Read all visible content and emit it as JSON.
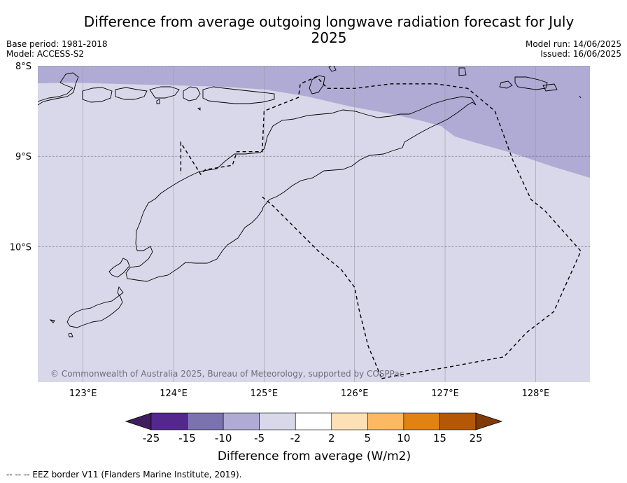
{
  "title": "Difference from average outgoing longwave radiation forecast for July 2025",
  "meta_left": {
    "base_period": "Base period: 1981-2018",
    "model": "Model: ACCESS-S2"
  },
  "meta_right": {
    "model_run": "Model run: 14/06/2025",
    "issued": "Issued: 16/06/2025"
  },
  "copyright": "© Commonwealth of Australia 2025, Bureau of Meteorology, supported by COSPPac",
  "footer": "--  --  -- EEZ border V11 (Flanders Marine Institute, 2019).",
  "colors": {
    "minus10_to_minus5": "#afabd4",
    "minus5_to_minus2": "#d8d8ea",
    "eez_line": "#000000"
  },
  "chart_data": {
    "type": "heatmap",
    "projection": "map",
    "xlim": [
      122.5,
      128.6
    ],
    "ylim": [
      -11.5,
      -8.0
    ],
    "x_ticks": [
      {
        "value": 123,
        "label": "123°E"
      },
      {
        "value": 124,
        "label": "124°E"
      },
      {
        "value": 125,
        "label": "125°E"
      },
      {
        "value": 126,
        "label": "126°E"
      },
      {
        "value": 127,
        "label": "127°E"
      },
      {
        "value": 128,
        "label": "128°E"
      }
    ],
    "y_ticks": [
      {
        "value": -8,
        "label": "8°S"
      },
      {
        "value": -9,
        "label": "9°S"
      },
      {
        "value": -10,
        "label": "10°S"
      }
    ],
    "grid": true,
    "regions": [
      {
        "range": "-10 to -5",
        "color": "#afabd4",
        "area": "north of about 8.2°S in the west, widening eastward to about 9.2°S at 128.6°E"
      },
      {
        "range": "-5 to -2",
        "color": "#d8d8ea",
        "area": "remainder of the map"
      }
    ],
    "colorbar": {
      "label": "Difference from average (W/m2)",
      "ticks": [
        "-25",
        "-15",
        "-10",
        "-5",
        "-2",
        "2",
        "5",
        "10",
        "15",
        "25"
      ],
      "colors": [
        "#3f1d5f",
        "#54278f",
        "#7b72b0",
        "#afabd4",
        "#d8d8ea",
        "#ffffff",
        "#fde0b6",
        "#fdb863",
        "#e08214",
        "#b35806",
        "#7f3b08"
      ],
      "extend": "both"
    },
    "eez_border": {
      "path": [
        [
          126.3,
          -11.46
        ],
        [
          126.5,
          -11.42
        ],
        [
          127.0,
          -11.34
        ],
        [
          127.65,
          -11.22
        ],
        [
          127.9,
          -10.95
        ],
        [
          128.2,
          -10.72
        ],
        [
          128.5,
          -10.05
        ],
        [
          128.1,
          -9.6
        ],
        [
          127.95,
          -9.48
        ],
        [
          127.75,
          -9.05
        ],
        [
          127.55,
          -8.5
        ],
        [
          127.25,
          -8.25
        ],
        [
          126.9,
          -8.2
        ],
        [
          126.4,
          -8.2
        ],
        [
          126.0,
          -8.25
        ],
        [
          125.7,
          -8.25
        ],
        [
          125.58,
          -8.12
        ],
        [
          125.4,
          -8.2
        ],
        [
          125.38,
          -8.35
        ],
        [
          125.0,
          -8.5
        ],
        [
          124.98,
          -8.95
        ],
        [
          124.7,
          -8.95
        ],
        [
          124.65,
          -9.1
        ],
        [
          124.35,
          -9.15
        ],
        [
          124.3,
          -9.2
        ],
        [
          124.08,
          -8.85
        ],
        [
          124.08,
          -9.2
        ]
      ],
      "inner_path": [
        [
          124.98,
          -9.45
        ],
        [
          125.1,
          -9.55
        ],
        [
          125.35,
          -9.8
        ],
        [
          125.6,
          -10.05
        ],
        [
          125.85,
          -10.25
        ],
        [
          126.0,
          -10.45
        ],
        [
          126.05,
          -10.7
        ],
        [
          126.15,
          -11.1
        ],
        [
          126.3,
          -11.46
        ]
      ],
      "style": "dashed"
    }
  }
}
